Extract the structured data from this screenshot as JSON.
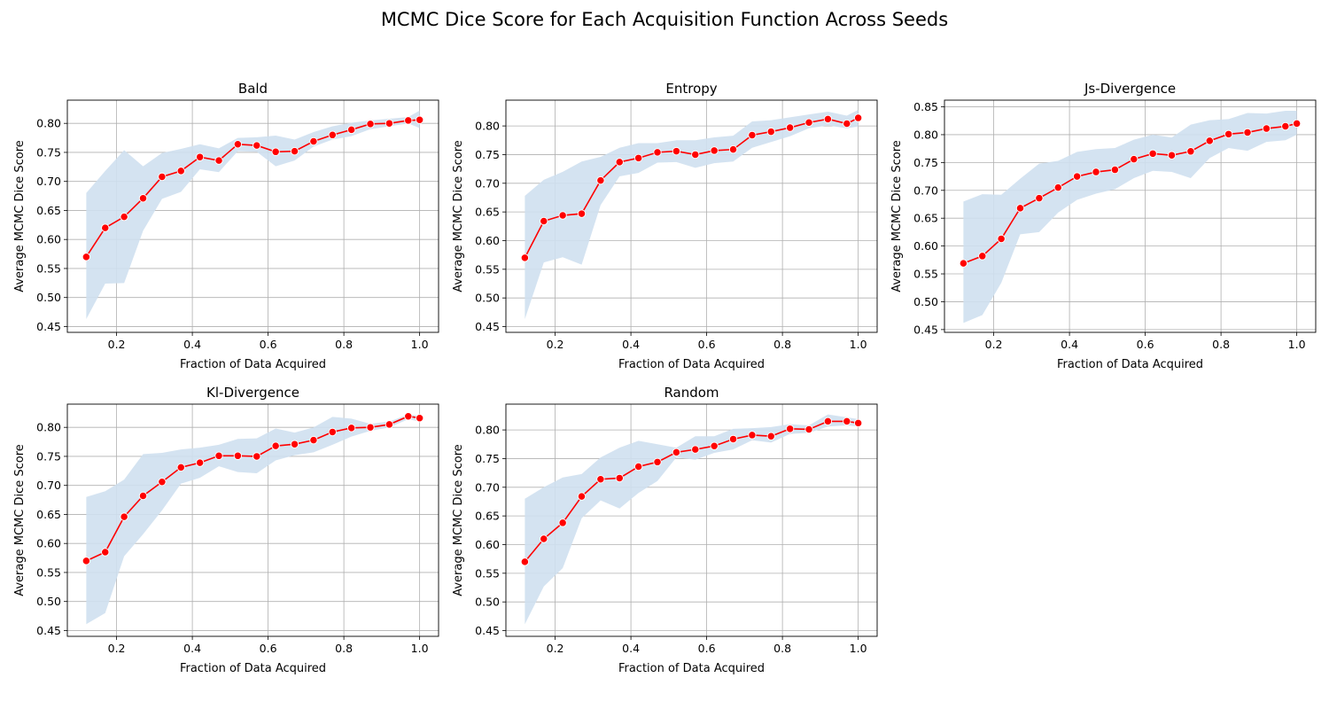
{
  "figure": {
    "suptitle": "MCMC Dice Score for Each Acquisition Function Across Seeds",
    "line_color": "#ff0000",
    "marker_edge_color": "#ffffff",
    "band_color": "#cfe0ef",
    "grid_color": "#b0b0b0"
  },
  "chart_data": [
    {
      "type": "line",
      "title": "Bald",
      "xlabel": "Fraction of Data Acquired",
      "ylabel": "Average MCMC Dice Score",
      "xlim": [
        0.07,
        1.05
      ],
      "ylim": [
        0.44,
        0.84
      ],
      "xticks": [
        0.2,
        0.4,
        0.6,
        0.8,
        1.0
      ],
      "xtick_labels": [
        "0.2",
        "0.4",
        "0.6",
        "0.8",
        "1.0"
      ],
      "yticks": [
        0.45,
        0.5,
        0.55,
        0.6,
        0.65,
        0.7,
        0.75,
        0.8
      ],
      "ytick_labels": [
        "0.45",
        "0.50",
        "0.55",
        "0.60",
        "0.65",
        "0.70",
        "0.75",
        "0.80"
      ],
      "grid": true,
      "x": [
        0.12,
        0.17,
        0.22,
        0.27,
        0.32,
        0.37,
        0.42,
        0.47,
        0.52,
        0.57,
        0.62,
        0.67,
        0.72,
        0.77,
        0.82,
        0.87,
        0.92,
        0.97,
        1.0
      ],
      "y": [
        0.57,
        0.62,
        0.639,
        0.671,
        0.708,
        0.718,
        0.742,
        0.736,
        0.764,
        0.762,
        0.751,
        0.752,
        0.769,
        0.78,
        0.789,
        0.799,
        0.8,
        0.805,
        0.806
      ],
      "y_lower": [
        0.463,
        0.524,
        0.525,
        0.615,
        0.67,
        0.682,
        0.721,
        0.716,
        0.752,
        0.751,
        0.726,
        0.736,
        0.76,
        0.772,
        0.778,
        0.79,
        0.795,
        0.8,
        0.792
      ],
      "y_upper": [
        0.68,
        0.718,
        0.754,
        0.726,
        0.749,
        0.756,
        0.764,
        0.757,
        0.775,
        0.776,
        0.779,
        0.772,
        0.785,
        0.795,
        0.801,
        0.805,
        0.808,
        0.811,
        0.822
      ]
    },
    {
      "type": "line",
      "title": "Entropy",
      "xlabel": "Fraction of Data Acquired",
      "ylabel": "Average MCMC Dice Score",
      "xlim": [
        0.07,
        1.05
      ],
      "ylim": [
        0.44,
        0.845
      ],
      "xticks": [
        0.2,
        0.4,
        0.6,
        0.8,
        1.0
      ],
      "xtick_labels": [
        "0.2",
        "0.4",
        "0.6",
        "0.8",
        "1.0"
      ],
      "yticks": [
        0.45,
        0.5,
        0.55,
        0.6,
        0.65,
        0.7,
        0.75,
        0.8
      ],
      "ytick_labels": [
        "0.45",
        "0.50",
        "0.55",
        "0.60",
        "0.65",
        "0.70",
        "0.75",
        "0.80"
      ],
      "grid": true,
      "x": [
        0.12,
        0.17,
        0.22,
        0.27,
        0.32,
        0.37,
        0.42,
        0.47,
        0.52,
        0.57,
        0.62,
        0.67,
        0.72,
        0.77,
        0.82,
        0.87,
        0.92,
        0.97,
        1.0
      ],
      "y": [
        0.57,
        0.634,
        0.644,
        0.647,
        0.705,
        0.737,
        0.744,
        0.754,
        0.756,
        0.75,
        0.757,
        0.759,
        0.784,
        0.79,
        0.797,
        0.806,
        0.812,
        0.804,
        0.814
      ],
      "y_lower": [
        0.463,
        0.562,
        0.571,
        0.558,
        0.662,
        0.712,
        0.718,
        0.736,
        0.737,
        0.727,
        0.735,
        0.738,
        0.762,
        0.772,
        0.782,
        0.796,
        0.801,
        0.796,
        0.799
      ],
      "y_upper": [
        0.678,
        0.706,
        0.72,
        0.738,
        0.746,
        0.762,
        0.77,
        0.77,
        0.775,
        0.775,
        0.78,
        0.783,
        0.808,
        0.81,
        0.815,
        0.82,
        0.825,
        0.818,
        0.828
      ]
    },
    {
      "type": "line",
      "title": "Js-Divergence",
      "xlabel": "Fraction of Data Acquired",
      "ylabel": "Average MCMC Dice Score",
      "xlim": [
        0.07,
        1.05
      ],
      "ylim": [
        0.445,
        0.862
      ],
      "xticks": [
        0.2,
        0.4,
        0.6,
        0.8,
        1.0
      ],
      "xtick_labels": [
        "0.2",
        "0.4",
        "0.6",
        "0.8",
        "1.0"
      ],
      "yticks": [
        0.45,
        0.5,
        0.55,
        0.6,
        0.65,
        0.7,
        0.75,
        0.8,
        0.85
      ],
      "ytick_labels": [
        "0.45",
        "0.50",
        "0.55",
        "0.60",
        "0.65",
        "0.70",
        "0.75",
        "0.80",
        "0.85"
      ],
      "grid": true,
      "x": [
        0.12,
        0.17,
        0.22,
        0.27,
        0.32,
        0.37,
        0.42,
        0.47,
        0.52,
        0.57,
        0.62,
        0.67,
        0.72,
        0.77,
        0.82,
        0.87,
        0.92,
        0.97,
        1.0
      ],
      "y": [
        0.569,
        0.582,
        0.613,
        0.668,
        0.686,
        0.705,
        0.725,
        0.733,
        0.737,
        0.756,
        0.766,
        0.763,
        0.77,
        0.789,
        0.801,
        0.804,
        0.811,
        0.815,
        0.82
      ],
      "y_lower": [
        0.462,
        0.476,
        0.534,
        0.621,
        0.625,
        0.66,
        0.683,
        0.694,
        0.702,
        0.722,
        0.735,
        0.733,
        0.722,
        0.758,
        0.776,
        0.771,
        0.787,
        0.79,
        0.8
      ],
      "y_upper": [
        0.68,
        0.693,
        0.692,
        0.721,
        0.748,
        0.753,
        0.769,
        0.774,
        0.776,
        0.791,
        0.8,
        0.795,
        0.818,
        0.826,
        0.828,
        0.839,
        0.838,
        0.843,
        0.843
      ]
    },
    {
      "type": "line",
      "title": "Kl-Divergence",
      "xlabel": "Fraction of Data Acquired",
      "ylabel": "Average MCMC Dice Score",
      "xlim": [
        0.07,
        1.05
      ],
      "ylim": [
        0.44,
        0.84
      ],
      "xticks": [
        0.2,
        0.4,
        0.6,
        0.8,
        1.0
      ],
      "xtick_labels": [
        "0.2",
        "0.4",
        "0.6",
        "0.8",
        "1.0"
      ],
      "yticks": [
        0.45,
        0.5,
        0.55,
        0.6,
        0.65,
        0.7,
        0.75,
        0.8
      ],
      "ytick_labels": [
        "0.45",
        "0.50",
        "0.55",
        "0.60",
        "0.65",
        "0.70",
        "0.75",
        "0.80"
      ],
      "grid": true,
      "x": [
        0.12,
        0.17,
        0.22,
        0.27,
        0.32,
        0.37,
        0.42,
        0.47,
        0.52,
        0.57,
        0.62,
        0.67,
        0.72,
        0.77,
        0.82,
        0.87,
        0.92,
        0.97,
        1.0
      ],
      "y": [
        0.57,
        0.585,
        0.646,
        0.682,
        0.706,
        0.731,
        0.739,
        0.751,
        0.751,
        0.75,
        0.768,
        0.771,
        0.778,
        0.792,
        0.799,
        0.8,
        0.805,
        0.819,
        0.816
      ],
      "y_lower": [
        0.461,
        0.48,
        0.578,
        0.616,
        0.657,
        0.703,
        0.713,
        0.733,
        0.723,
        0.721,
        0.743,
        0.752,
        0.757,
        0.77,
        0.784,
        0.794,
        0.8,
        0.814,
        0.81
      ],
      "y_upper": [
        0.68,
        0.69,
        0.71,
        0.754,
        0.756,
        0.762,
        0.765,
        0.77,
        0.78,
        0.781,
        0.798,
        0.791,
        0.8,
        0.818,
        0.815,
        0.806,
        0.81,
        0.822,
        0.82
      ]
    },
    {
      "type": "line",
      "title": "Random",
      "xlabel": "Fraction of Data Acquired",
      "ylabel": "Average MCMC Dice Score",
      "xlim": [
        0.07,
        1.05
      ],
      "ylim": [
        0.44,
        0.845
      ],
      "xticks": [
        0.2,
        0.4,
        0.6,
        0.8,
        1.0
      ],
      "xtick_labels": [
        "0.2",
        "0.4",
        "0.6",
        "0.8",
        "1.0"
      ],
      "yticks": [
        0.45,
        0.5,
        0.55,
        0.6,
        0.65,
        0.7,
        0.75,
        0.8
      ],
      "ytick_labels": [
        "0.45",
        "0.50",
        "0.55",
        "0.60",
        "0.65",
        "0.70",
        "0.75",
        "0.80"
      ],
      "grid": true,
      "x": [
        0.12,
        0.17,
        0.22,
        0.27,
        0.32,
        0.37,
        0.42,
        0.47,
        0.52,
        0.57,
        0.62,
        0.67,
        0.72,
        0.77,
        0.82,
        0.87,
        0.92,
        0.97,
        1.0
      ],
      "y": [
        0.57,
        0.61,
        0.638,
        0.684,
        0.714,
        0.716,
        0.736,
        0.744,
        0.761,
        0.766,
        0.772,
        0.784,
        0.791,
        0.789,
        0.802,
        0.801,
        0.815,
        0.815,
        0.812
      ],
      "y_lower": [
        0.461,
        0.527,
        0.559,
        0.646,
        0.677,
        0.663,
        0.69,
        0.711,
        0.752,
        0.748,
        0.76,
        0.766,
        0.782,
        0.778,
        0.793,
        0.795,
        0.806,
        0.808,
        0.806
      ],
      "y_upper": [
        0.68,
        0.7,
        0.717,
        0.723,
        0.752,
        0.769,
        0.781,
        0.775,
        0.769,
        0.789,
        0.789,
        0.802,
        0.803,
        0.805,
        0.81,
        0.808,
        0.827,
        0.822,
        0.819
      ]
    }
  ]
}
